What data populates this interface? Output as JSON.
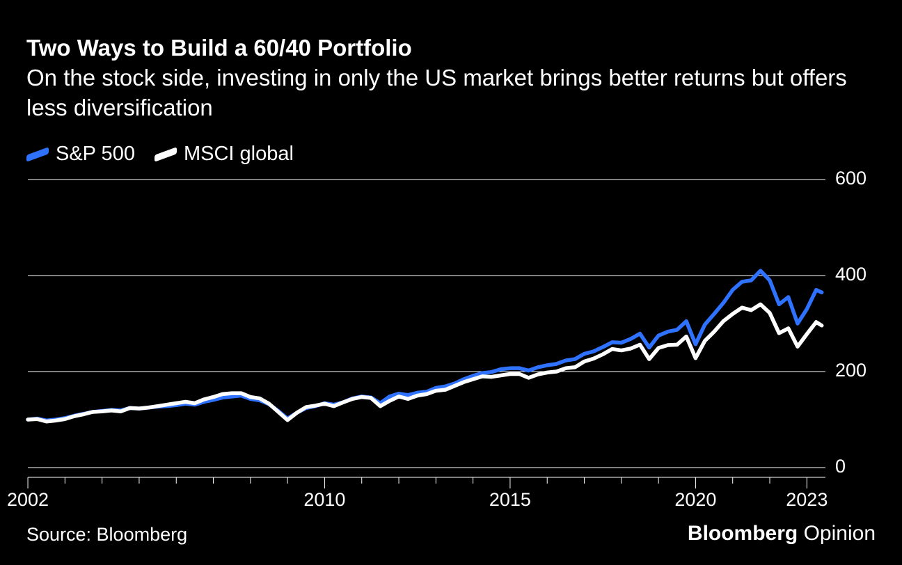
{
  "title": "Two Ways to Build a 60/40 Portfolio",
  "subtitle": "On the stock side, investing in only the US market brings better returns but offers less diversification",
  "legend": {
    "items": [
      {
        "label": "S&P 500",
        "color": "#2f72ff"
      },
      {
        "label": "MSCI global",
        "color": "#ffffff"
      }
    ]
  },
  "source": "Source: Bloomberg",
  "brand": {
    "strong": "Bloomberg",
    "light": "Opinion"
  },
  "chart": {
    "type": "line",
    "background_color": "#000000",
    "grid_color": "#ffffff",
    "label_fontsize": 27,
    "line_width": 5.5,
    "x_range": [
      2002,
      2023.5
    ],
    "y_range": [
      0,
      600
    ],
    "y_ticks": [
      0,
      200,
      400,
      600
    ],
    "x_ticks_major": [
      2002,
      2010,
      2015,
      2020,
      2023
    ],
    "x_tick_every": 1,
    "series": [
      {
        "name": "S&P 500",
        "color": "#2f72ff",
        "points": [
          [
            2002.0,
            100
          ],
          [
            2002.25,
            102
          ],
          [
            2002.5,
            98
          ],
          [
            2002.75,
            100
          ],
          [
            2003.0,
            103
          ],
          [
            2003.25,
            108
          ],
          [
            2003.5,
            112
          ],
          [
            2003.75,
            116
          ],
          [
            2004.0,
            118
          ],
          [
            2004.25,
            120
          ],
          [
            2004.5,
            119
          ],
          [
            2004.75,
            124
          ],
          [
            2005.0,
            123
          ],
          [
            2005.25,
            125
          ],
          [
            2005.5,
            127
          ],
          [
            2005.75,
            128
          ],
          [
            2006.0,
            130
          ],
          [
            2006.25,
            133
          ],
          [
            2006.5,
            131
          ],
          [
            2006.75,
            137
          ],
          [
            2007.0,
            141
          ],
          [
            2007.25,
            146
          ],
          [
            2007.5,
            148
          ],
          [
            2007.75,
            150
          ],
          [
            2008.0,
            143
          ],
          [
            2008.25,
            140
          ],
          [
            2008.5,
            132
          ],
          [
            2008.75,
            118
          ],
          [
            2009.0,
            102
          ],
          [
            2009.25,
            114
          ],
          [
            2009.5,
            124
          ],
          [
            2009.75,
            128
          ],
          [
            2010.0,
            134
          ],
          [
            2010.25,
            131
          ],
          [
            2010.5,
            136
          ],
          [
            2010.75,
            144
          ],
          [
            2011.0,
            148
          ],
          [
            2011.25,
            146
          ],
          [
            2011.5,
            134
          ],
          [
            2011.75,
            148
          ],
          [
            2012.0,
            154
          ],
          [
            2012.25,
            151
          ],
          [
            2012.5,
            156
          ],
          [
            2012.75,
            158
          ],
          [
            2013.0,
            166
          ],
          [
            2013.25,
            169
          ],
          [
            2013.5,
            175
          ],
          [
            2013.75,
            184
          ],
          [
            2014.0,
            191
          ],
          [
            2014.25,
            197
          ],
          [
            2014.5,
            199
          ],
          [
            2014.75,
            205
          ],
          [
            2015.0,
            207
          ],
          [
            2015.25,
            207
          ],
          [
            2015.5,
            202
          ],
          [
            2015.75,
            209
          ],
          [
            2016.0,
            213
          ],
          [
            2016.25,
            216
          ],
          [
            2016.5,
            223
          ],
          [
            2016.75,
            226
          ],
          [
            2017.0,
            237
          ],
          [
            2017.25,
            242
          ],
          [
            2017.5,
            251
          ],
          [
            2017.75,
            261
          ],
          [
            2018.0,
            260
          ],
          [
            2018.25,
            268
          ],
          [
            2018.5,
            279
          ],
          [
            2018.75,
            250
          ],
          [
            2019.0,
            275
          ],
          [
            2019.25,
            283
          ],
          [
            2019.5,
            287
          ],
          [
            2019.75,
            305
          ],
          [
            2020.0,
            257
          ],
          [
            2020.25,
            298
          ],
          [
            2020.5,
            320
          ],
          [
            2020.75,
            343
          ],
          [
            2021.0,
            370
          ],
          [
            2021.25,
            387
          ],
          [
            2021.5,
            390
          ],
          [
            2021.75,
            410
          ],
          [
            2022.0,
            390
          ],
          [
            2022.25,
            340
          ],
          [
            2022.5,
            355
          ],
          [
            2022.75,
            300
          ],
          [
            2023.0,
            330
          ],
          [
            2023.25,
            370
          ],
          [
            2023.4,
            365
          ]
        ]
      },
      {
        "name": "MSCI global",
        "color": "#ffffff",
        "points": [
          [
            2002.0,
            100
          ],
          [
            2002.25,
            101
          ],
          [
            2002.5,
            96
          ],
          [
            2002.75,
            98
          ],
          [
            2003.0,
            101
          ],
          [
            2003.25,
            107
          ],
          [
            2003.5,
            111
          ],
          [
            2003.75,
            116
          ],
          [
            2004.0,
            117
          ],
          [
            2004.25,
            119
          ],
          [
            2004.5,
            117
          ],
          [
            2004.75,
            124
          ],
          [
            2005.0,
            123
          ],
          [
            2005.25,
            125
          ],
          [
            2005.5,
            128
          ],
          [
            2005.75,
            131
          ],
          [
            2006.0,
            134
          ],
          [
            2006.25,
            137
          ],
          [
            2006.5,
            134
          ],
          [
            2006.75,
            142
          ],
          [
            2007.0,
            147
          ],
          [
            2007.25,
            153
          ],
          [
            2007.5,
            155
          ],
          [
            2007.75,
            155
          ],
          [
            2008.0,
            147
          ],
          [
            2008.25,
            144
          ],
          [
            2008.5,
            133
          ],
          [
            2008.75,
            116
          ],
          [
            2009.0,
            99
          ],
          [
            2009.25,
            114
          ],
          [
            2009.5,
            126
          ],
          [
            2009.75,
            129
          ],
          [
            2010.0,
            133
          ],
          [
            2010.25,
            128
          ],
          [
            2010.5,
            136
          ],
          [
            2010.75,
            143
          ],
          [
            2011.0,
            147
          ],
          [
            2011.25,
            145
          ],
          [
            2011.5,
            128
          ],
          [
            2011.75,
            139
          ],
          [
            2012.0,
            148
          ],
          [
            2012.25,
            143
          ],
          [
            2012.5,
            150
          ],
          [
            2012.75,
            153
          ],
          [
            2013.0,
            160
          ],
          [
            2013.25,
            162
          ],
          [
            2013.5,
            170
          ],
          [
            2013.75,
            178
          ],
          [
            2014.0,
            184
          ],
          [
            2014.25,
            190
          ],
          [
            2014.5,
            189
          ],
          [
            2014.75,
            192
          ],
          [
            2015.0,
            195
          ],
          [
            2015.25,
            195
          ],
          [
            2015.5,
            187
          ],
          [
            2015.75,
            194
          ],
          [
            2016.0,
            198
          ],
          [
            2016.25,
            200
          ],
          [
            2016.5,
            207
          ],
          [
            2016.75,
            209
          ],
          [
            2017.0,
            221
          ],
          [
            2017.25,
            227
          ],
          [
            2017.5,
            236
          ],
          [
            2017.75,
            247
          ],
          [
            2018.0,
            244
          ],
          [
            2018.25,
            248
          ],
          [
            2018.5,
            256
          ],
          [
            2018.75,
            226
          ],
          [
            2019.0,
            249
          ],
          [
            2019.25,
            255
          ],
          [
            2019.5,
            256
          ],
          [
            2019.75,
            273
          ],
          [
            2020.0,
            228
          ],
          [
            2020.25,
            264
          ],
          [
            2020.5,
            283
          ],
          [
            2020.75,
            305
          ],
          [
            2021.0,
            320
          ],
          [
            2021.25,
            333
          ],
          [
            2021.5,
            328
          ],
          [
            2021.75,
            340
          ],
          [
            2022.0,
            322
          ],
          [
            2022.25,
            280
          ],
          [
            2022.5,
            290
          ],
          [
            2022.75,
            252
          ],
          [
            2023.0,
            278
          ],
          [
            2023.25,
            303
          ],
          [
            2023.4,
            296
          ]
        ]
      }
    ]
  }
}
